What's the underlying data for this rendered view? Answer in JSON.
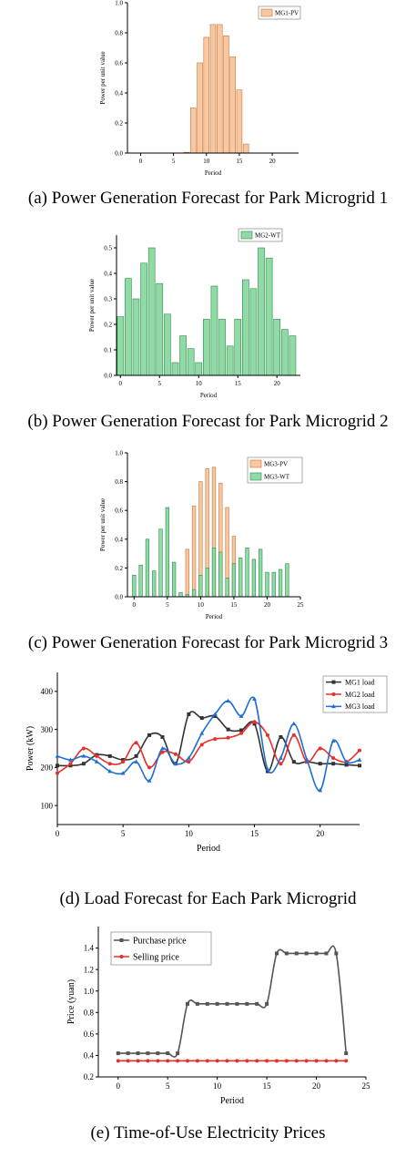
{
  "chart_data": [
    {
      "id": "a",
      "type": "bar",
      "caption": "(a) Power Generation Forecast for Park Microgrid 1",
      "xlabel": "Period",
      "ylabel": "Power per unit value",
      "xlim": [
        -2,
        24
      ],
      "ylim": [
        0,
        1.0
      ],
      "xticks": [
        0,
        5,
        10,
        15,
        20
      ],
      "yticks": [
        0.0,
        0.2,
        0.4,
        0.6,
        0.8,
        1.0
      ],
      "legend_position": "top-right",
      "grid": false,
      "series": [
        {
          "name": "MG1-PV",
          "color": "#f8c9a0",
          "edge": "#c8743a",
          "x": [
            7,
            8,
            9,
            10,
            11,
            12,
            13,
            14,
            15,
            16
          ],
          "values": [
            0.005,
            0.3,
            0.6,
            0.77,
            0.855,
            0.855,
            0.78,
            0.64,
            0.42,
            0.06
          ]
        }
      ]
    },
    {
      "id": "b",
      "type": "bar",
      "caption": "(b) Power Generation Forecast for Park Microgrid 2",
      "xlabel": "Period",
      "ylabel": "Power per unit value",
      "xlim": [
        -0.5,
        23
      ],
      "ylim": [
        0,
        0.55
      ],
      "xticks": [
        0,
        5,
        10,
        15,
        20
      ],
      "yticks": [
        0.0,
        0.1,
        0.2,
        0.3,
        0.4,
        0.5
      ],
      "legend_position": "top-right",
      "grid": false,
      "series": [
        {
          "name": "MG2-WT",
          "color": "#90dba5",
          "edge": "#2f8a4c",
          "x": [
            0,
            1,
            2,
            3,
            4,
            5,
            6,
            7,
            8,
            9,
            10,
            11,
            12,
            13,
            14,
            15,
            16,
            17,
            18,
            19,
            20,
            21,
            22
          ],
          "values": [
            0.23,
            0.38,
            0.3,
            0.44,
            0.5,
            0.36,
            0.24,
            0.05,
            0.155,
            0.105,
            0.05,
            0.22,
            0.35,
            0.22,
            0.115,
            0.22,
            0.375,
            0.34,
            0.5,
            0.46,
            0.22,
            0.18,
            0.155
          ]
        }
      ]
    },
    {
      "id": "c",
      "type": "bar",
      "caption": "(c) Power Generation Forecast for Park Microgrid 3",
      "xlabel": "Period",
      "ylabel": "Power per unit value",
      "xlim": [
        -1,
        25
      ],
      "ylim": [
        0,
        1.0
      ],
      "xticks": [
        0,
        5,
        10,
        15,
        20,
        25
      ],
      "yticks": [
        0.0,
        0.2,
        0.4,
        0.6,
        0.8,
        1.0
      ],
      "legend_position": "top-right",
      "grid": false,
      "series": [
        {
          "name": "MG3-PV",
          "color": "#f8c9a0",
          "edge": "#c8743a",
          "x": [
            7,
            8,
            9,
            10,
            11,
            12,
            13,
            14,
            15,
            16
          ],
          "values": [
            0.01,
            0.33,
            0.63,
            0.8,
            0.89,
            0.9,
            0.79,
            0.62,
            0.42,
            0.02
          ]
        },
        {
          "name": "MG3-WT",
          "color": "#90dba5",
          "edge": "#2f8a4c",
          "x": [
            0,
            1,
            2,
            3,
            4,
            5,
            6,
            7,
            8,
            9,
            10,
            11,
            12,
            13,
            14,
            15,
            16,
            17,
            18,
            19,
            20,
            21,
            22,
            23
          ],
          "values": [
            0.15,
            0.22,
            0.4,
            0.18,
            0.47,
            0.62,
            0.24,
            0.03,
            0.015,
            0.05,
            0.15,
            0.2,
            0.34,
            0.31,
            0.13,
            0.23,
            0.27,
            0.34,
            0.26,
            0.33,
            0.17,
            0.17,
            0.19,
            0.23
          ]
        }
      ]
    },
    {
      "id": "d",
      "type": "line",
      "caption": "(d) Load Forecast for Each Park Microgrid",
      "xlabel": "Period",
      "ylabel": "Power (kW)",
      "xlim": [
        0,
        23
      ],
      "ylim": [
        50,
        450
      ],
      "xticks": [
        0,
        5,
        10,
        15,
        20
      ],
      "yticks": [
        100,
        200,
        300,
        400
      ],
      "legend_position": "top-right",
      "grid": false,
      "x": [
        0,
        1,
        2,
        3,
        4,
        5,
        6,
        7,
        8,
        9,
        10,
        11,
        12,
        13,
        14,
        15,
        16,
        17,
        18,
        19,
        20,
        21,
        22,
        23
      ],
      "series": [
        {
          "name": "MG1 load",
          "color": "#333333",
          "marker": "square",
          "values": [
            205,
            205,
            210,
            233,
            230,
            220,
            230,
            285,
            280,
            210,
            340,
            330,
            335,
            300,
            298,
            315,
            190,
            280,
            215,
            215,
            210,
            210,
            207,
            205
          ]
        },
        {
          "name": "MG2 load",
          "color": "#e8302a",
          "marker": "circle",
          "values": [
            185,
            210,
            250,
            230,
            210,
            215,
            265,
            200,
            240,
            235,
            215,
            260,
            275,
            278,
            290,
            320,
            285,
            210,
            285,
            215,
            250,
            225,
            215,
            245
          ]
        },
        {
          "name": "MG3 load",
          "color": "#1f6fd1",
          "marker": "triangle",
          "values": [
            230,
            220,
            230,
            215,
            190,
            185,
            215,
            165,
            250,
            210,
            225,
            290,
            340,
            375,
            335,
            380,
            195,
            225,
            315,
            220,
            140,
            270,
            215,
            220
          ]
        }
      ]
    },
    {
      "id": "e",
      "type": "line",
      "caption": "(e) Time-of-Use Electricity Prices",
      "xlabel": "Period",
      "ylabel": "Price (yuan)",
      "xlim": [
        -2,
        25
      ],
      "ylim": [
        0.2,
        1.6
      ],
      "xticks": [
        0,
        5,
        10,
        15,
        20,
        25
      ],
      "yticks": [
        0.2,
        0.4,
        0.6,
        0.8,
        1.0,
        1.2,
        1.4
      ],
      "legend_position": "top-left",
      "grid": false,
      "x": [
        0,
        1,
        2,
        3,
        4,
        5,
        6,
        7,
        8,
        9,
        10,
        11,
        12,
        13,
        14,
        15,
        16,
        17,
        18,
        19,
        20,
        21,
        22,
        23
      ],
      "series": [
        {
          "name": "Purchase price",
          "color": "#555555",
          "marker": "square",
          "values": [
            0.42,
            0.42,
            0.42,
            0.42,
            0.42,
            0.42,
            0.42,
            0.88,
            0.88,
            0.88,
            0.88,
            0.88,
            0.88,
            0.88,
            0.88,
            0.88,
            1.35,
            1.35,
            1.35,
            1.35,
            1.35,
            1.35,
            1.35,
            0.42
          ]
        },
        {
          "name": "Selling price",
          "color": "#e8302a",
          "marker": "circle",
          "values": [
            0.35,
            0.35,
            0.35,
            0.35,
            0.35,
            0.35,
            0.35,
            0.35,
            0.35,
            0.35,
            0.35,
            0.35,
            0.35,
            0.35,
            0.35,
            0.35,
            0.35,
            0.35,
            0.35,
            0.35,
            0.35,
            0.35,
            0.35,
            0.35
          ]
        }
      ]
    }
  ]
}
